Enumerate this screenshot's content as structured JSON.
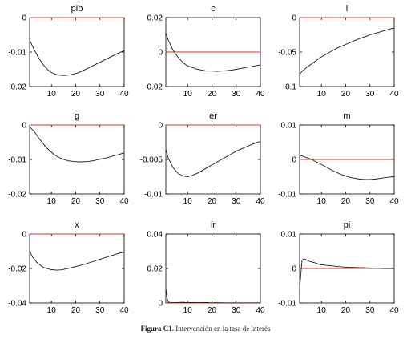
{
  "caption": {
    "label": "Figura C1.",
    "text": "Intervención en la tasa de interés"
  },
  "colors": {
    "response": "#1a1a1a",
    "zero_line": "#c0392b",
    "axis": "#000000"
  },
  "chart_data": [
    {
      "type": "line",
      "title": "pib",
      "xlim": [
        1,
        40
      ],
      "ylim": [
        -0.02,
        0
      ],
      "xticks": [
        10,
        20,
        30,
        40
      ],
      "yticks": [
        0,
        -0.01,
        -0.02
      ],
      "ytick_labels": [
        "0",
        "-0.01",
        "-0.02"
      ],
      "series": [
        {
          "x": [
            1,
            3,
            5,
            7,
            9,
            11,
            13,
            15,
            17,
            19,
            21,
            23,
            25,
            27,
            29,
            31,
            33,
            35,
            37,
            39,
            40
          ],
          "y": [
            -0.0065,
            -0.0095,
            -0.012,
            -0.014,
            -0.0155,
            -0.0163,
            -0.0167,
            -0.0168,
            -0.0167,
            -0.0164,
            -0.016,
            -0.0154,
            -0.0147,
            -0.014,
            -0.0133,
            -0.0126,
            -0.0119,
            -0.0112,
            -0.0105,
            -0.0099,
            -0.0096
          ]
        }
      ],
      "zero_line": 0
    },
    {
      "type": "line",
      "title": "c",
      "xlim": [
        1,
        40
      ],
      "ylim": [
        -0.02,
        0.02
      ],
      "xticks": [
        10,
        20,
        30,
        40
      ],
      "yticks": [
        0.02,
        0,
        -0.02
      ],
      "ytick_labels": [
        "0.02",
        "0",
        "-0.02"
      ],
      "series": [
        {
          "x": [
            1,
            2,
            4,
            6,
            8,
            10,
            12,
            14,
            16,
            18,
            20,
            22,
            24,
            26,
            28,
            30,
            32,
            34,
            36,
            38,
            40
          ],
          "y": [
            0.011,
            0.007,
            0.001,
            -0.003,
            -0.006,
            -0.008,
            -0.009,
            -0.01,
            -0.0105,
            -0.011,
            -0.011,
            -0.0112,
            -0.011,
            -0.0108,
            -0.0105,
            -0.01,
            -0.0095,
            -0.009,
            -0.0085,
            -0.008,
            -0.0075
          ]
        }
      ],
      "zero_line": 0
    },
    {
      "type": "line",
      "title": "i",
      "xlim": [
        1,
        40
      ],
      "ylim": [
        -0.1,
        0
      ],
      "xticks": [
        10,
        20,
        30,
        40
      ],
      "yticks": [
        0,
        -0.05,
        -0.1
      ],
      "ytick_labels": [
        "0",
        "-0.05",
        "-0.1"
      ],
      "series": [
        {
          "x": [
            1,
            2,
            4,
            6,
            8,
            10,
            12,
            14,
            16,
            18,
            20,
            22,
            24,
            26,
            28,
            30,
            32,
            34,
            36,
            38,
            40
          ],
          "y": [
            -0.082,
            -0.078,
            -0.072,
            -0.067,
            -0.062,
            -0.057,
            -0.053,
            -0.049,
            -0.045,
            -0.042,
            -0.039,
            -0.036,
            -0.033,
            -0.03,
            -0.028,
            -0.025,
            -0.023,
            -0.021,
            -0.019,
            -0.017,
            -0.015
          ]
        }
      ],
      "zero_line": 0
    },
    {
      "type": "line",
      "title": "g",
      "xlim": [
        1,
        40
      ],
      "ylim": [
        -0.02,
        0
      ],
      "xticks": [
        10,
        20,
        30,
        40
      ],
      "yticks": [
        0,
        -0.01,
        -0.02
      ],
      "ytick_labels": [
        "0",
        "-0.01",
        "-0.02"
      ],
      "series": [
        {
          "x": [
            1,
            3,
            5,
            7,
            9,
            11,
            13,
            15,
            17,
            19,
            21,
            23,
            25,
            27,
            29,
            31,
            33,
            35,
            37,
            39,
            40
          ],
          "y": [
            -0.0005,
            -0.002,
            -0.004,
            -0.0058,
            -0.0073,
            -0.0085,
            -0.0094,
            -0.01,
            -0.0104,
            -0.0106,
            -0.0107,
            -0.0107,
            -0.0106,
            -0.0104,
            -0.0101,
            -0.0098,
            -0.0095,
            -0.0091,
            -0.0087,
            -0.0083,
            -0.0081
          ]
        }
      ],
      "zero_line": 0
    },
    {
      "type": "line",
      "title": "er",
      "xlim": [
        1,
        40
      ],
      "ylim": [
        -0.01,
        0
      ],
      "xticks": [
        10,
        20,
        30,
        40
      ],
      "yticks": [
        0,
        -0.005,
        -0.01
      ],
      "ytick_labels": [
        "0",
        "-0.005",
        "-0.01"
      ],
      "series": [
        {
          "x": [
            1,
            2,
            4,
            6,
            8,
            10,
            12,
            14,
            16,
            18,
            20,
            22,
            24,
            26,
            28,
            30,
            32,
            34,
            36,
            38,
            40
          ],
          "y": [
            -0.0035,
            -0.0048,
            -0.0062,
            -0.007,
            -0.0074,
            -0.0075,
            -0.0073,
            -0.007,
            -0.0066,
            -0.0062,
            -0.0058,
            -0.0054,
            -0.005,
            -0.0046,
            -0.0042,
            -0.0038,
            -0.0035,
            -0.0032,
            -0.0029,
            -0.0026,
            -0.0024
          ]
        }
      ],
      "zero_line": 0
    },
    {
      "type": "line",
      "title": "m",
      "xlim": [
        1,
        40
      ],
      "ylim": [
        -0.01,
        0.01
      ],
      "xticks": [
        10,
        20,
        30,
        40
      ],
      "yticks": [
        0.01,
        0,
        -0.01
      ],
      "ytick_labels": [
        "0.01",
        "0",
        "-0.01"
      ],
      "series": [
        {
          "x": [
            1,
            2,
            4,
            6,
            8,
            10,
            12,
            14,
            16,
            18,
            20,
            22,
            24,
            26,
            28,
            30,
            32,
            34,
            36,
            38,
            40
          ],
          "y": [
            0.0012,
            0.001,
            0.0005,
            0.0,
            -0.0008,
            -0.0015,
            -0.0022,
            -0.003,
            -0.0037,
            -0.0043,
            -0.0048,
            -0.0052,
            -0.0055,
            -0.0057,
            -0.0058,
            -0.0058,
            -0.0057,
            -0.0055,
            -0.0053,
            -0.0051,
            -0.005
          ]
        }
      ],
      "zero_line": 0
    },
    {
      "type": "line",
      "title": "x",
      "xlim": [
        1,
        40
      ],
      "ylim": [
        -0.04,
        0
      ],
      "xticks": [
        10,
        20,
        30,
        40
      ],
      "yticks": [
        0,
        -0.02,
        -0.04
      ],
      "ytick_labels": [
        "0",
        "-0.02",
        "-0.04"
      ],
      "series": [
        {
          "x": [
            1,
            2,
            4,
            6,
            8,
            10,
            12,
            14,
            16,
            18,
            20,
            22,
            24,
            26,
            28,
            30,
            32,
            34,
            36,
            38,
            40
          ],
          "y": [
            -0.0095,
            -0.013,
            -0.0165,
            -0.0188,
            -0.02,
            -0.0207,
            -0.021,
            -0.0208,
            -0.0203,
            -0.0196,
            -0.0189,
            -0.0182,
            -0.0174,
            -0.0165,
            -0.0156,
            -0.0147,
            -0.0138,
            -0.0129,
            -0.012,
            -0.0111,
            -0.0105
          ]
        }
      ],
      "zero_line": 0
    },
    {
      "type": "line",
      "title": "ir",
      "xlim": [
        1,
        40
      ],
      "ylim": [
        0,
        0.04
      ],
      "xticks": [
        10,
        20,
        30,
        40
      ],
      "yticks": [
        0.04,
        0.02,
        0
      ],
      "ytick_labels": [
        "0.04",
        "0.02",
        "0"
      ],
      "series": [
        {
          "x": [
            1,
            1.5,
            2,
            3,
            5,
            8,
            10,
            12,
            15,
            18,
            20,
            22,
            25,
            30,
            35,
            40
          ],
          "y": [
            0.0085,
            0.003,
            0.0005,
            0.0003,
            0.0002,
            0.0004,
            0.0002,
            0.0003,
            0.0002,
            0.0003,
            0.0001,
            0.0002,
            0.0001,
            0.0001,
            0.0001,
            0.0001
          ]
        }
      ],
      "zero_line": 0
    },
    {
      "type": "line",
      "title": "pi",
      "xlim": [
        1,
        40
      ],
      "ylim": [
        -0.01,
        0.01
      ],
      "xticks": [
        10,
        20,
        30,
        40
      ],
      "yticks": [
        0.01,
        0,
        -0.01
      ],
      "ytick_labels": [
        "0.01",
        "0",
        "-0.01"
      ],
      "series": [
        {
          "x": [
            1,
            2,
            3,
            4,
            5,
            6,
            7,
            8,
            9,
            10,
            12,
            14,
            16,
            18,
            20,
            22,
            24,
            26,
            28,
            30,
            32,
            34,
            36,
            38,
            40
          ],
          "y": [
            -0.006,
            0.0025,
            0.0028,
            0.0024,
            0.0021,
            0.0019,
            0.0017,
            0.0015,
            0.0012,
            0.0011,
            0.0009,
            0.0008,
            0.0006,
            0.0005,
            0.0004,
            0.0003,
            0.0003,
            0.0002,
            0.0002,
            0.0001,
            0.0001,
            0.0001,
            0.0,
            0.0,
            0.0
          ]
        }
      ],
      "zero_line": 0
    }
  ]
}
